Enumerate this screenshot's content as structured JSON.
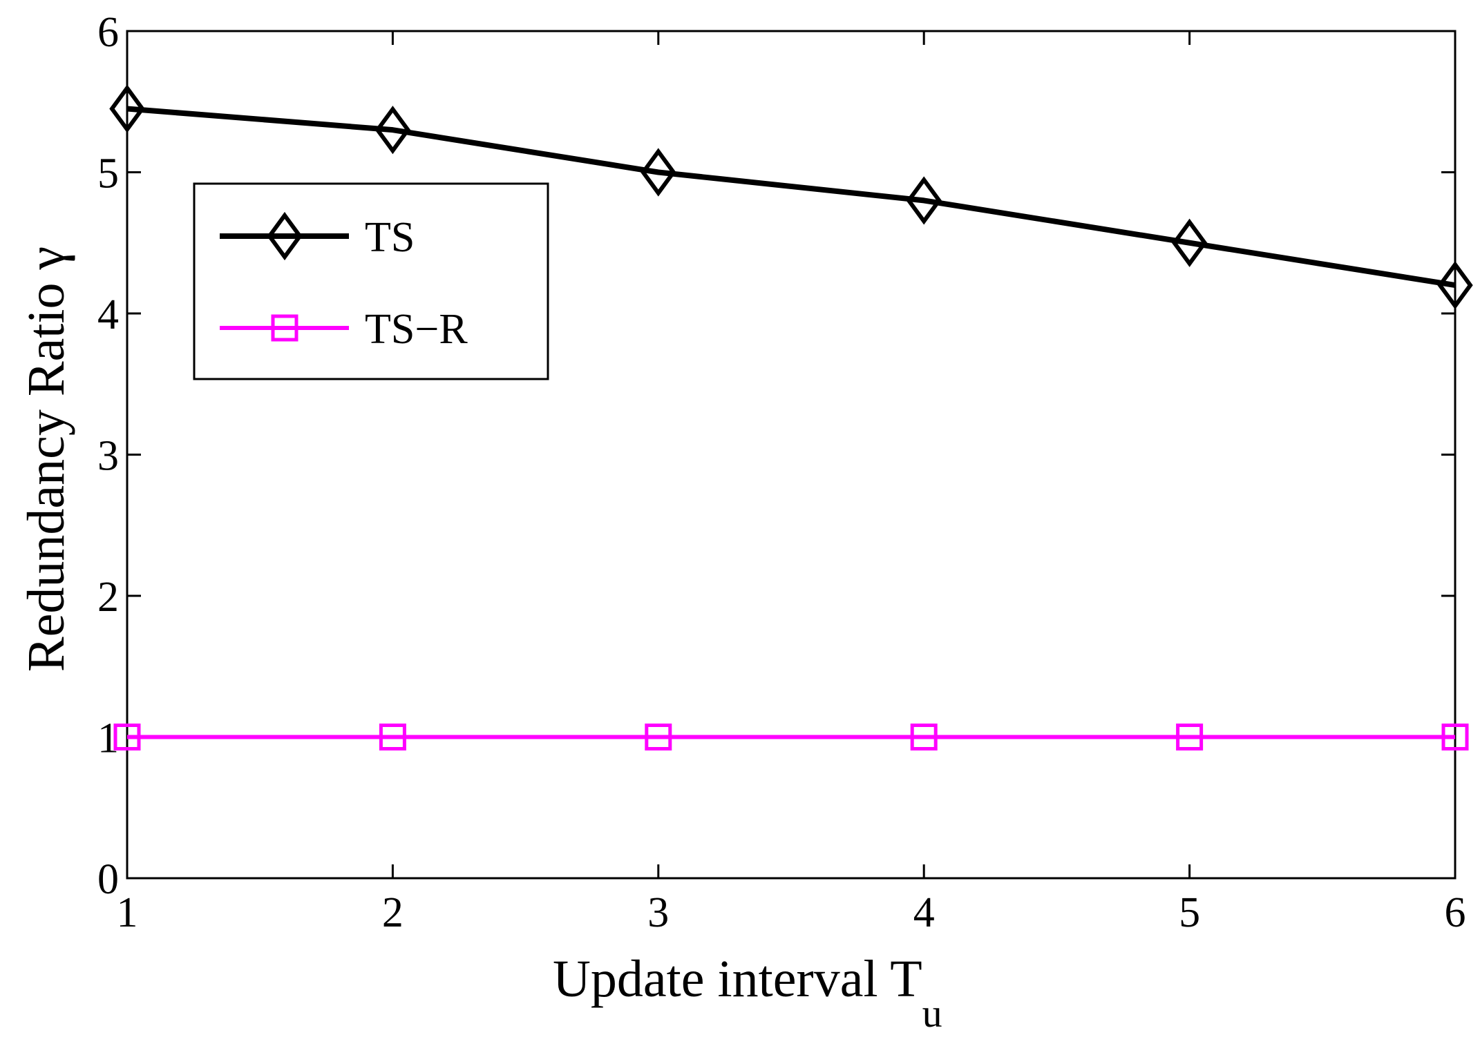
{
  "chart_data": {
    "type": "line",
    "title": "",
    "xlabel": "Update interval T",
    "xlabel_sub": "u",
    "ylabel": "Redundancy Ratio γ",
    "x": [
      1,
      2,
      3,
      4,
      5,
      6
    ],
    "xlim": [
      1,
      6
    ],
    "ylim": [
      0,
      6
    ],
    "xticks": [
      1,
      2,
      3,
      4,
      5,
      6
    ],
    "yticks": [
      0,
      1,
      2,
      3,
      4,
      5,
      6
    ],
    "grid": false,
    "legend_position": "top-left",
    "series": [
      {
        "name": "TS",
        "color": "#000000",
        "marker": "diamond",
        "values": [
          5.45,
          5.3,
          5.0,
          4.8,
          4.5,
          4.2
        ]
      },
      {
        "name": "TS−R",
        "color": "#ff00ff",
        "marker": "square",
        "values": [
          1,
          1,
          1,
          1,
          1,
          1
        ]
      }
    ]
  }
}
